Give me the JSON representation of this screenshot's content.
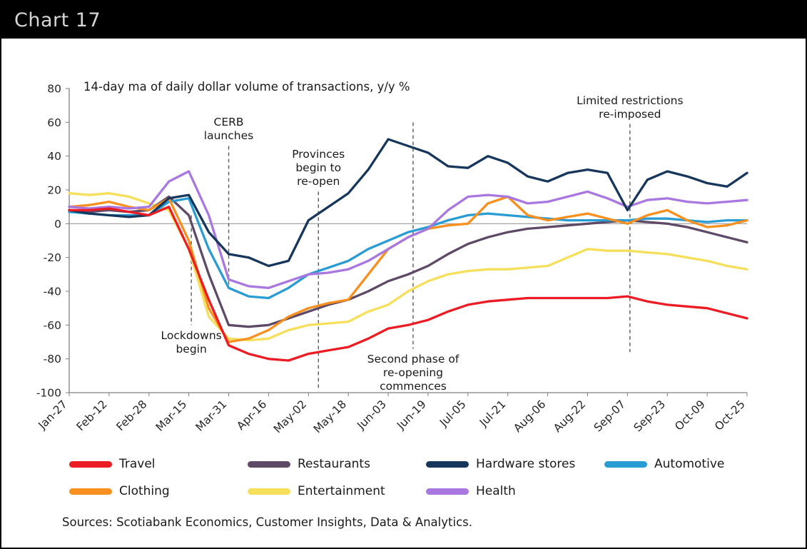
{
  "header": {
    "title": "Chart 17"
  },
  "chart_data": {
    "type": "line",
    "title": "14-day ma of daily dollar volume of transactions, y/y %",
    "ylim": [
      -100,
      80
    ],
    "y_ticks": [
      80,
      60,
      40,
      20,
      0,
      -20,
      -40,
      -60,
      -80,
      -100
    ],
    "zero_line": true,
    "grid": false,
    "legend_position": "bottom",
    "x_tick_labels": [
      "Jan-27",
      "Feb-12",
      "Feb-28",
      "Mar-15",
      "Mar-31",
      "Apr-16",
      "May-02",
      "May-18",
      "Jun-03",
      "Jun-19",
      "Jul-05",
      "Jul-21",
      "Aug-06",
      "Aug-22",
      "Sep-07",
      "Sep-23",
      "Oct-09",
      "Oct-25"
    ],
    "x_tick_days": [
      0,
      16,
      32,
      48,
      64,
      80,
      96,
      112,
      128,
      144,
      160,
      176,
      192,
      208,
      224,
      240,
      256,
      272
    ],
    "x_days": [
      0,
      8,
      16,
      24,
      32,
      40,
      48,
      56,
      64,
      72,
      80,
      88,
      96,
      104,
      112,
      120,
      128,
      136,
      144,
      152,
      160,
      168,
      176,
      184,
      192,
      200,
      208,
      216,
      224,
      232,
      240,
      248,
      256,
      264,
      272
    ],
    "series": [
      {
        "name": "Travel",
        "color": "#ec1c24",
        "values": [
          8,
          8,
          9,
          7,
          5,
          10,
          -15,
          -45,
          -72,
          -77,
          -80,
          -81,
          -77,
          -75,
          -73,
          -68,
          -62,
          -60,
          -57,
          -52,
          -48,
          -46,
          -45,
          -44,
          -44,
          -44,
          -44,
          -44,
          -43,
          -46,
          -48,
          -49,
          -50,
          -53,
          -56
        ]
      },
      {
        "name": "Restaurants",
        "color": "#5e4967",
        "values": [
          8,
          7,
          8,
          7,
          8,
          16,
          5,
          -30,
          -60,
          -61,
          -60,
          -56,
          -52,
          -48,
          -45,
          -40,
          -34,
          -30,
          -25,
          -18,
          -12,
          -8,
          -5,
          -3,
          -2,
          -1,
          0,
          1,
          2,
          1,
          0,
          -2,
          -5,
          -8,
          -11
        ]
      },
      {
        "name": "Hardware stores",
        "color": "#16365c",
        "values": [
          8,
          6,
          5,
          4,
          5,
          15,
          17,
          -5,
          -18,
          -20,
          -25,
          -22,
          2,
          10,
          18,
          32,
          50,
          46,
          42,
          34,
          33,
          40,
          36,
          28,
          25,
          30,
          32,
          30,
          8,
          26,
          31,
          28,
          24,
          22,
          30
        ]
      },
      {
        "name": "Automotive",
        "color": "#289cd3",
        "values": [
          7,
          6,
          5,
          5,
          5,
          13,
          15,
          -15,
          -38,
          -43,
          -44,
          -38,
          -30,
          -26,
          -22,
          -15,
          -10,
          -5,
          -2,
          2,
          5,
          6,
          5,
          4,
          3,
          2,
          2,
          2,
          2,
          3,
          3,
          2,
          1,
          2,
          2
        ]
      },
      {
        "name": "Clothing",
        "color": "#f7901e",
        "values": [
          10,
          11,
          13,
          10,
          8,
          15,
          -10,
          -50,
          -70,
          -68,
          -63,
          -55,
          -50,
          -47,
          -45,
          -30,
          -15,
          -8,
          -3,
          -1,
          0,
          12,
          16,
          5,
          2,
          4,
          6,
          3,
          0,
          5,
          8,
          2,
          -2,
          -1,
          2
        ]
      },
      {
        "name": "Entertainment",
        "color": "#f5df5b",
        "values": [
          18,
          17,
          18,
          16,
          12,
          8,
          -15,
          -55,
          -68,
          -69,
          -68,
          -63,
          -60,
          -59,
          -58,
          -52,
          -48,
          -40,
          -34,
          -30,
          -28,
          -27,
          -27,
          -26,
          -25,
          -20,
          -15,
          -16,
          -16,
          -17,
          -18,
          -20,
          -22,
          -25,
          -27
        ]
      },
      {
        "name": "Health",
        "color": "#a877e0",
        "values": [
          10,
          9,
          10,
          9,
          10,
          25,
          31,
          5,
          -33,
          -37,
          -38,
          -34,
          -30,
          -29,
          -27,
          -22,
          -15,
          -8,
          -3,
          8,
          16,
          17,
          16,
          12,
          13,
          16,
          19,
          15,
          10,
          14,
          15,
          13,
          12,
          13,
          14
        ]
      }
    ],
    "annotations": [
      {
        "id": "lockdowns-begin",
        "label": "Lockdowns\nbegin",
        "day": 49,
        "line_top_value": 5,
        "line_bottom_value": -60,
        "label_side": "below"
      },
      {
        "id": "cerb-launches",
        "label": "CERB\nlaunches",
        "day": 64,
        "line_top_value": 46,
        "line_bottom_value": -37,
        "label_side": "above"
      },
      {
        "id": "provinces-reopen",
        "label": "Provinces\nbegin to\nre-open",
        "day": 100,
        "line_top_value": 19,
        "line_bottom_value": -99,
        "label_side": "above"
      },
      {
        "id": "second-phase",
        "label": "Second phase of\nre-opening\ncommences",
        "day": 138,
        "line_top_value": 60,
        "line_bottom_value": -74,
        "label_side": "below"
      },
      {
        "id": "limited-restrictions",
        "label": "Limited restrictions\nre-imposed",
        "day": 225,
        "line_top_value": 59,
        "line_bottom_value": -76,
        "label_side": "above"
      }
    ]
  },
  "footer": {
    "sources": "Sources: Scotiabank Economics, Customer Insights, Data & Analytics."
  }
}
